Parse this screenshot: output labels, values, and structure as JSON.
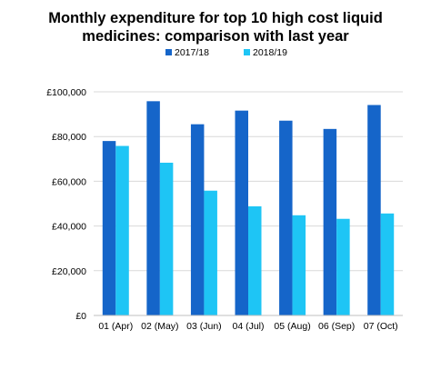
{
  "chart_data": {
    "type": "bar",
    "title_lines": [
      "Monthly expenditure for top 10 high cost liquid",
      "medicines: comparison with last year"
    ],
    "categories": [
      "01 (Apr)",
      "02 (May)",
      "03 (Jun)",
      "04 (Jul)",
      "05 (Aug)",
      "06 (Sep)",
      "07 (Oct)"
    ],
    "series": [
      {
        "name": "2017/18",
        "color": "#1565c9",
        "values": [
          78000,
          95800,
          85500,
          91600,
          87100,
          83400,
          94100
        ]
      },
      {
        "name": "2018/19",
        "color": "#1ec5f5",
        "values": [
          75800,
          68300,
          55800,
          48800,
          44800,
          43200,
          45600
        ]
      }
    ],
    "ylim": [
      0,
      100000
    ],
    "yticks": [
      0,
      20000,
      40000,
      60000,
      80000,
      100000
    ],
    "ytick_labels": [
      "£0",
      "£20,000",
      "£40,000",
      "£60,000",
      "£80,000",
      "£100,000"
    ],
    "legend_position": "top",
    "grid": true,
    "grid_color": "#d9d9d9"
  }
}
